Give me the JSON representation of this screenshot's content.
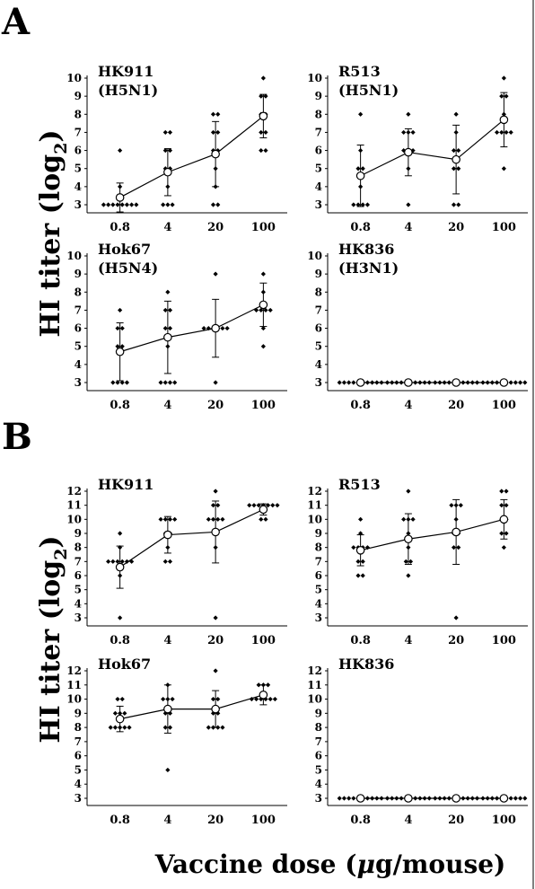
{
  "figure": {
    "panel_A_label": "A",
    "panel_B_label": "B",
    "ylabel_main": "HI titer (log",
    "ylabel_sub": "2",
    "ylabel_end": ")",
    "xlabel_main": "Vaccine dose (",
    "xlabel_mu": "μ",
    "xlabel_end": "g/mouse)"
  },
  "chart_data": [
    {
      "type": "scatter",
      "panel": "A",
      "title": "HK911",
      "subtitle": "(H5N1)",
      "categories": [
        "0.8",
        "4",
        "20",
        "100"
      ],
      "ylim": [
        3,
        10
      ],
      "yticks": [
        3,
        4,
        5,
        6,
        7,
        8,
        9,
        10
      ],
      "means": [
        3.4,
        4.8,
        5.8,
        7.9
      ],
      "sd": [
        0.8,
        1.3,
        1.8,
        1.2
      ],
      "points": [
        [
          3,
          3,
          3,
          3,
          3,
          3,
          3,
          3,
          4,
          6
        ],
        [
          3,
          3,
          3,
          4,
          5,
          5,
          6,
          6,
          7,
          7
        ],
        [
          3,
          3,
          4,
          5,
          6,
          6,
          7,
          7,
          8,
          8
        ],
        [
          6,
          6,
          7,
          7,
          8,
          8,
          9,
          9,
          10
        ]
      ]
    },
    {
      "type": "scatter",
      "panel": "A",
      "title": "R513",
      "subtitle": "(H5N1)",
      "categories": [
        "0.8",
        "4",
        "20",
        "100"
      ],
      "ylim": [
        3,
        10
      ],
      "yticks": [
        3,
        4,
        5,
        6,
        7,
        8,
        9,
        10
      ],
      "means": [
        4.6,
        5.9,
        5.5,
        7.7
      ],
      "sd": [
        1.7,
        1.3,
        1.9,
        1.5
      ],
      "points": [
        [
          3,
          3,
          3,
          3,
          4,
          5,
          5,
          6,
          8
        ],
        [
          3,
          5,
          6,
          6,
          6,
          7,
          7,
          7,
          8
        ],
        [
          3,
          3,
          5,
          5,
          6,
          6,
          7,
          8
        ],
        [
          5,
          7,
          7,
          7,
          7,
          8,
          9,
          9,
          10
        ]
      ]
    },
    {
      "type": "scatter",
      "panel": "A",
      "title": "Hok67",
      "subtitle": "(H5N4)",
      "categories": [
        "0.8",
        "4",
        "20",
        "100"
      ],
      "ylim": [
        3,
        10
      ],
      "yticks": [
        3,
        4,
        5,
        6,
        7,
        8,
        9,
        10
      ],
      "means": [
        4.7,
        5.5,
        6.0,
        7.3
      ],
      "sd": [
        1.6,
        2.0,
        1.6,
        1.2
      ],
      "points": [
        [
          3,
          3,
          3,
          3,
          5,
          5,
          6,
          6,
          7
        ],
        [
          3,
          3,
          3,
          3,
          5,
          6,
          6,
          7,
          7,
          8
        ],
        [
          3,
          6,
          6,
          6,
          6,
          6,
          6,
          9
        ],
        [
          5,
          6,
          7,
          7,
          7,
          7,
          8,
          9
        ]
      ]
    },
    {
      "type": "scatter",
      "panel": "A",
      "title": "HK836",
      "subtitle": "(H3N1)",
      "categories": [
        "0.8",
        "4",
        "20",
        "100"
      ],
      "ylim": [
        3,
        10
      ],
      "yticks": [
        3,
        4,
        5,
        6,
        7,
        8,
        9,
        10
      ],
      "means": [
        3,
        3,
        3,
        3
      ],
      "sd": [
        0,
        0,
        0,
        0
      ],
      "points": [
        [
          3,
          3,
          3,
          3,
          3,
          3,
          3,
          3,
          3,
          3
        ],
        [
          3,
          3,
          3,
          3,
          3,
          3,
          3,
          3,
          3,
          3
        ],
        [
          3,
          3,
          3,
          3,
          3,
          3,
          3,
          3,
          3,
          3
        ],
        [
          3,
          3,
          3,
          3,
          3,
          3,
          3,
          3,
          3,
          3
        ]
      ]
    },
    {
      "type": "scatter",
      "panel": "B",
      "title": "HK911",
      "subtitle": "",
      "categories": [
        "0.8",
        "4",
        "20",
        "100"
      ],
      "ylim": [
        3,
        12
      ],
      "yticks": [
        3,
        4,
        5,
        6,
        7,
        8,
        9,
        10,
        11,
        12
      ],
      "means": [
        6.6,
        8.9,
        9.1,
        10.7
      ],
      "sd": [
        1.5,
        1.3,
        2.2,
        0.4
      ],
      "points": [
        [
          3,
          6,
          7,
          7,
          7,
          7,
          7,
          7,
          8,
          9
        ],
        [
          7,
          7,
          8,
          9,
          9,
          10,
          10,
          10,
          10
        ],
        [
          3,
          8,
          9,
          10,
          10,
          10,
          10,
          11,
          11,
          12
        ],
        [
          10,
          10,
          11,
          11,
          11,
          11,
          11,
          11,
          11
        ]
      ]
    },
    {
      "type": "scatter",
      "panel": "B",
      "title": "R513",
      "subtitle": "",
      "categories": [
        "0.8",
        "4",
        "20",
        "100"
      ],
      "ylim": [
        3,
        12
      ],
      "yticks": [
        3,
        4,
        5,
        6,
        7,
        8,
        9,
        10,
        11,
        12
      ],
      "means": [
        7.8,
        8.6,
        9.1,
        10.0
      ],
      "sd": [
        1.1,
        1.8,
        2.3,
        1.4
      ],
      "points": [
        [
          6,
          6,
          7,
          7,
          8,
          8,
          8,
          8,
          9,
          10
        ],
        [
          6,
          7,
          7,
          8,
          9,
          10,
          10,
          10,
          12
        ],
        [
          3,
          8,
          8,
          9,
          9,
          10,
          11,
          11,
          11
        ],
        [
          8,
          9,
          9,
          10,
          10,
          11,
          11,
          12,
          12
        ]
      ]
    },
    {
      "type": "scatter",
      "panel": "B",
      "title": "Hok67",
      "subtitle": "",
      "categories": [
        "0.8",
        "4",
        "20",
        "100"
      ],
      "ylim": [
        3,
        12
      ],
      "yticks": [
        3,
        4,
        5,
        6,
        7,
        8,
        9,
        10,
        11,
        12
      ],
      "means": [
        8.6,
        9.3,
        9.3,
        10.3
      ],
      "sd": [
        0.9,
        1.7,
        1.3,
        0.7
      ],
      "points": [
        [
          8,
          8,
          8,
          8,
          8,
          9,
          9,
          9,
          10,
          10
        ],
        [
          5,
          8,
          8,
          9,
          9,
          10,
          10,
          10,
          11
        ],
        [
          8,
          8,
          8,
          8,
          9,
          9,
          10,
          10,
          12
        ],
        [
          10,
          10,
          10,
          10,
          10,
          10,
          11,
          11,
          11
        ]
      ]
    },
    {
      "type": "scatter",
      "panel": "B",
      "title": "HK836",
      "subtitle": "",
      "categories": [
        "0.8",
        "4",
        "20",
        "100"
      ],
      "ylim": [
        3,
        12
      ],
      "yticks": [
        3,
        4,
        5,
        6,
        7,
        8,
        9,
        10,
        11,
        12
      ],
      "means": [
        3,
        3,
        3,
        3
      ],
      "sd": [
        0,
        0,
        0,
        0
      ],
      "points": [
        [
          3,
          3,
          3,
          3,
          3,
          3,
          3,
          3,
          3,
          3
        ],
        [
          3,
          3,
          3,
          3,
          3,
          3,
          3,
          3,
          3,
          3
        ],
        [
          3,
          3,
          3,
          3,
          3,
          3,
          3,
          3,
          3,
          3
        ],
        [
          3,
          3,
          3,
          3,
          3,
          3,
          3,
          3,
          3,
          3
        ]
      ]
    }
  ]
}
